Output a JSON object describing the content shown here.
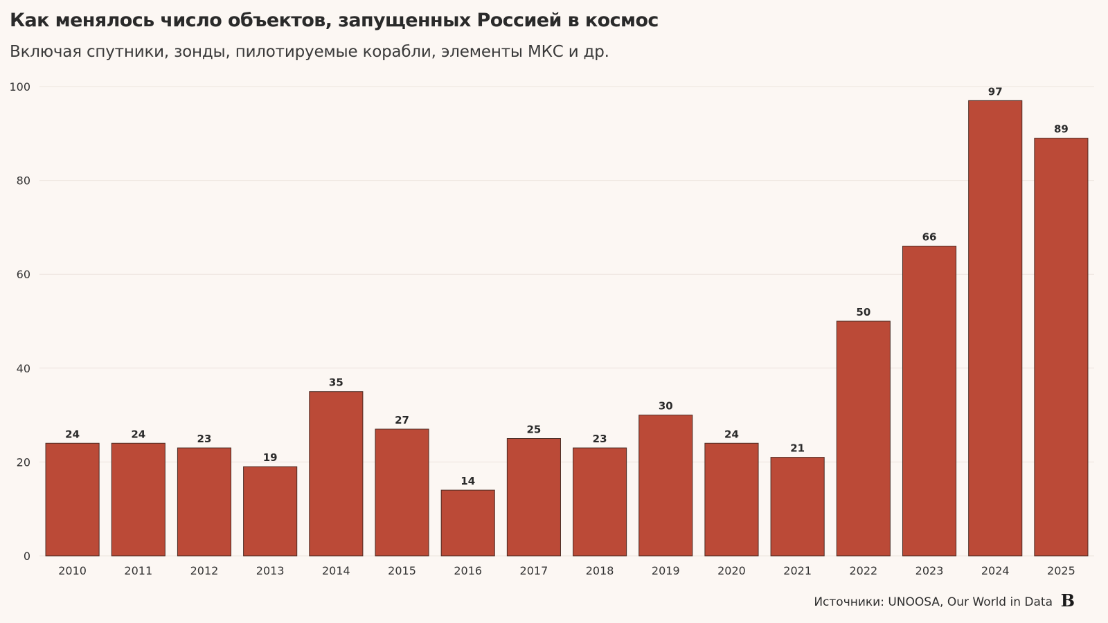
{
  "chart_data": {
    "type": "bar",
    "title": "Как менялось число объектов, запущенных Россией в космос",
    "subtitle": "Включая спутники, зонды, пилотируемые корабли, элементы МКС и др.",
    "categories": [
      "2010",
      "2011",
      "2012",
      "2013",
      "2014",
      "2015",
      "2016",
      "2017",
      "2018",
      "2019",
      "2020",
      "2021",
      "2022",
      "2023",
      "2024",
      "2025"
    ],
    "values": [
      24,
      24,
      23,
      19,
      35,
      27,
      14,
      25,
      23,
      30,
      24,
      21,
      50,
      66,
      97,
      89
    ],
    "ylim": [
      0,
      100
    ],
    "yticks": [
      0,
      20,
      40,
      60,
      80,
      100
    ],
    "grid": true,
    "data_labels": true,
    "bar_color": "#bb4a37",
    "bar_edge_color": "#4a2a22"
  },
  "footer": {
    "source": "Источники: UNOOSA, Our World in Data",
    "logo_text": "B"
  }
}
